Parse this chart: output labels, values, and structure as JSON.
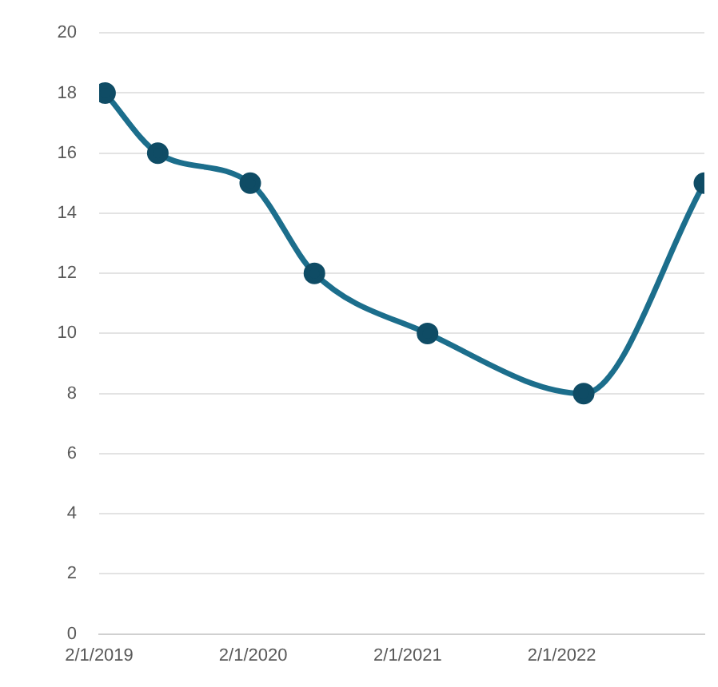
{
  "chart_data": {
    "type": "line",
    "x": [
      "2019-02-15",
      "2019-06-20",
      "2020-01-25",
      "2020-06-25",
      "2021-03-20",
      "2022-03-25",
      "2023-01-05"
    ],
    "series": [
      {
        "color": "#1c6e8c",
        "values": [
          18,
          16,
          15,
          12,
          10,
          8,
          15
        ]
      }
    ],
    "xlim": [
      "2019-02-01",
      "2023-01-05"
    ],
    "xticks": [
      {
        "value": "2019-02-01",
        "label": "2/1/2019"
      },
      {
        "value": "2020-02-01",
        "label": "2/1/2020"
      },
      {
        "value": "2021-02-01",
        "label": "2/1/2021"
      },
      {
        "value": "2022-02-01",
        "label": "2/1/2022"
      }
    ],
    "ylim": [
      0,
      20
    ],
    "yticks": [
      0,
      2,
      4,
      6,
      8,
      10,
      12,
      14,
      16,
      18,
      20
    ],
    "grid": "y",
    "legend": false,
    "marker": "circle",
    "line_style": "solid"
  }
}
